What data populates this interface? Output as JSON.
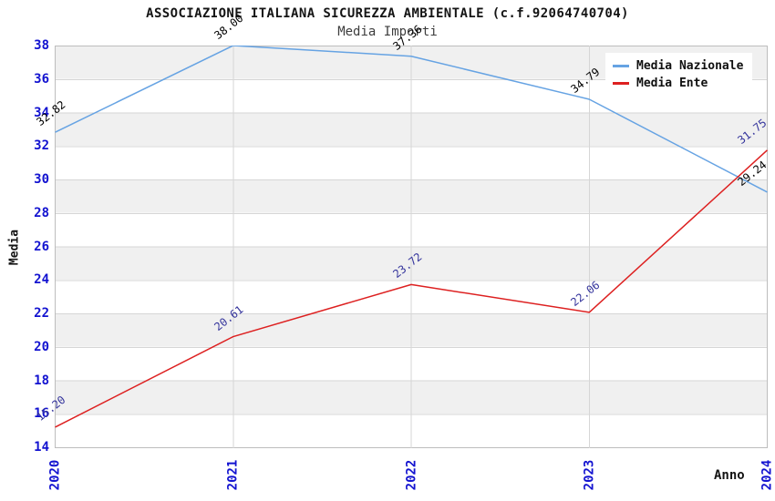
{
  "chart_data": {
    "type": "line",
    "title": "ASSOCIAZIONE ITALIANA SICUREZZA AMBIENTALE (c.f.92064740704)",
    "subtitle": "Media Importi",
    "xlabel": "Anno",
    "ylabel": "Media",
    "x_categories": [
      "2020",
      "2021",
      "2022",
      "2023",
      "2024"
    ],
    "ylim": [
      14,
      38
    ],
    "ytick_step": 2,
    "grid": true,
    "legend_position": "top-right",
    "band_colors": [
      "#f0f0f0",
      "#ffffff"
    ],
    "axis_tick_color": "#1212d0",
    "gridline_color": "#d6d6d6",
    "plot_border_color": "#bdbdbd",
    "series": [
      {
        "name": "Media Nazionale",
        "color": "#66a3e3",
        "label_color": "#000000",
        "values": [
          32.82,
          38.0,
          37.36,
          34.79,
          29.24
        ],
        "labels": [
          "32.82",
          "38.00",
          "37.36",
          "34.79",
          "29.24"
        ]
      },
      {
        "name": "Media Ente",
        "color": "#dd2020",
        "label_color": "#34349c",
        "values": [
          15.2,
          20.61,
          23.72,
          22.06,
          31.75
        ],
        "labels": [
          "15.20",
          "20.61",
          "23.72",
          "22.06",
          "31.75"
        ]
      }
    ]
  }
}
